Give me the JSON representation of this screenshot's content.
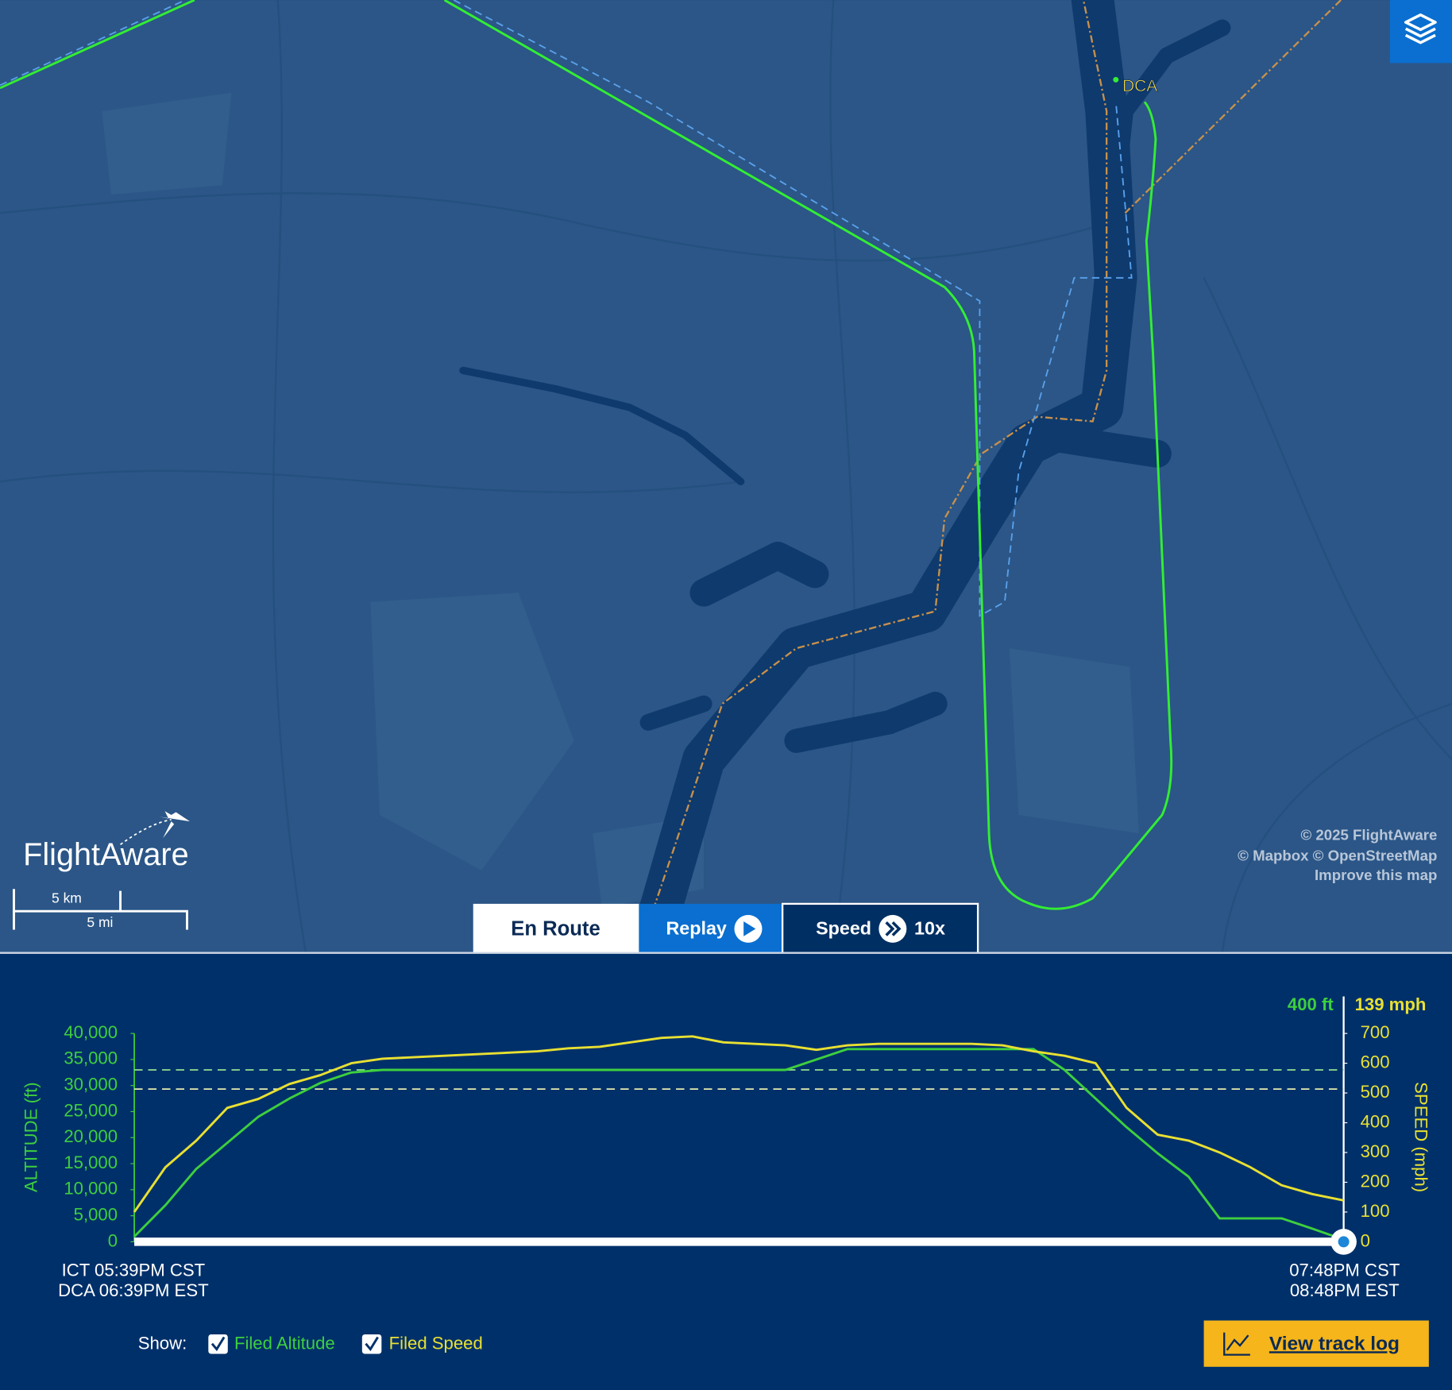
{
  "map": {
    "airport": "DCA",
    "logo": "FlightAware",
    "scale_km": "5 km",
    "scale_mi": "5 mi",
    "credits": [
      "© 2025 FlightAware",
      "© Mapbox © OpenStreetMap",
      "Improve this map"
    ]
  },
  "controls": {
    "en_route": "En Route",
    "replay": "Replay",
    "speed": "Speed",
    "speed_value": "10x",
    "show": "Show:",
    "track_log": "View track log"
  },
  "chart_data": {
    "type": "line",
    "y_label": "ALTITUDE (ft)",
    "y2_label": "SPEED (mph)",
    "readouts": {
      "altitude": "400 ft",
      "speed": "139 mph"
    },
    "x_labels": {
      "start": [
        "ICT 05:39PM CST",
        "DCA 06:39PM EST"
      ],
      "end": [
        "07:48PM CST",
        "08:48PM EST"
      ]
    },
    "categories": [
      null,
      null,
      null,
      null,
      null,
      null,
      null,
      null,
      null,
      null,
      null,
      null,
      null,
      null,
      null,
      null,
      null,
      null,
      null,
      null,
      null,
      null,
      null,
      null,
      null,
      null,
      null,
      null,
      null,
      null,
      null,
      null,
      null,
      null,
      null,
      null,
      null,
      null,
      null,
      null
    ],
    "series": [
      {
        "name": "Altitude",
        "color": "#3ecf3e",
        "axis": "y",
        "values": [
          1000,
          7000,
          14000,
          19000,
          24000,
          27500,
          30500,
          32500,
          33000,
          33000,
          33000,
          33000,
          33000,
          33000,
          33000,
          33000,
          33000,
          33000,
          33000,
          33000,
          33000,
          33000,
          35000,
          37000,
          37000,
          37000,
          37000,
          37000,
          37000,
          37000,
          33000,
          27500,
          22000,
          17000,
          12500,
          4500,
          4500,
          4500,
          2500,
          400
        ]
      },
      {
        "name": "Speed",
        "color": "#e8e032",
        "axis": "y2",
        "values": [
          100,
          250,
          340,
          450,
          480,
          530,
          560,
          600,
          615,
          620,
          625,
          630,
          635,
          640,
          650,
          655,
          670,
          685,
          690,
          670,
          665,
          660,
          645,
          660,
          665,
          665,
          665,
          665,
          660,
          640,
          625,
          600,
          450,
          360,
          340,
          300,
          250,
          190,
          160,
          139
        ]
      }
    ],
    "reference_lines": [
      {
        "name": "Filed Altitude",
        "value": 33000,
        "axis": "y",
        "color": "#8fe08f"
      },
      {
        "name": "Filed Speed",
        "value": 513,
        "axis": "y2",
        "color": "#e6ecb0"
      }
    ],
    "ylim": [
      0,
      40000
    ],
    "yticks": [
      0,
      {
        "value": 5000,
        "label": "5,000"
      },
      {
        "value": 10000,
        "label": "10,000"
      },
      {
        "value": 15000,
        "label": "15,000"
      },
      {
        "value": 20000,
        "label": "20,000"
      },
      {
        "value": 25000,
        "label": "25,000"
      },
      {
        "value": 30000,
        "label": "30,000"
      },
      {
        "value": 35000,
        "label": "35,000"
      },
      {
        "value": 40000,
        "label": "40,000"
      }
    ],
    "y2lim": [
      0,
      700
    ],
    "y2ticks": [
      0,
      100,
      200,
      300,
      400,
      500,
      600,
      700
    ]
  }
}
